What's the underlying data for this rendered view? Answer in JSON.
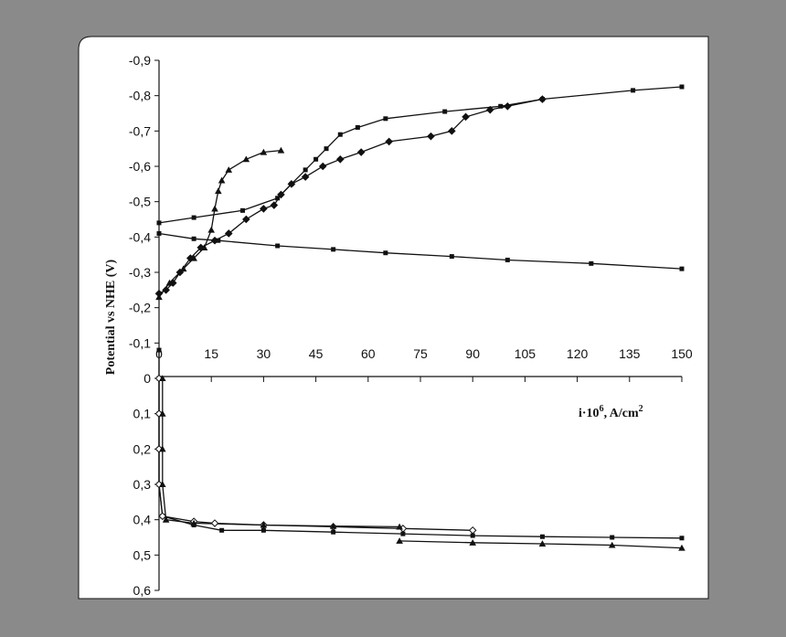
{
  "chart_data": {
    "type": "scatter",
    "title": "",
    "xlabel": "i·10",
    "xlabel_sup": "6",
    "xlabel_unit": ", A/cm",
    "xlabel_unit_sup": "2",
    "ylabel": "Potential vs NHE (V)",
    "xlim": [
      0,
      150
    ],
    "ylim": [
      -0.9,
      0.6
    ],
    "y_direction": "negative values at top",
    "x_ticks": [
      0,
      15,
      30,
      45,
      60,
      75,
      90,
      105,
      120,
      135,
      150
    ],
    "x_tick_labels": [
      "0",
      "15",
      "30",
      "45",
      "60",
      "75",
      "90",
      "105",
      "120",
      "135",
      "150"
    ],
    "y_ticks": [
      -0.9,
      -0.8,
      -0.7,
      -0.6,
      -0.5,
      -0.4,
      -0.3,
      -0.2,
      -0.1,
      0,
      0.1,
      0.2,
      0.3,
      0.4,
      0.5,
      0.6
    ],
    "y_tick_labels": [
      "-0,9",
      "-0,8",
      "-0,7",
      "-0,6",
      "-0,5",
      "-0,4",
      "-0,3",
      "-0,2",
      "-0,1",
      "0",
      "0,1",
      "0,2",
      "0,3",
      "0,4",
      "0,5",
      "0,6"
    ],
    "grid": false,
    "legend": "none",
    "colors": {
      "background": "#8a8a8a",
      "plot_area": "#ffffff",
      "ink": "#111111"
    },
    "series": [
      {
        "marker": "square",
        "points": [
          [
            0,
            -0.44
          ],
          [
            10,
            -0.455
          ],
          [
            24,
            -0.475
          ],
          [
            34,
            -0.51
          ],
          [
            38,
            -0.55
          ],
          [
            42,
            -0.59
          ],
          [
            45,
            -0.62
          ],
          [
            48,
            -0.65
          ],
          [
            52,
            -0.69
          ],
          [
            57,
            -0.71
          ],
          [
            65,
            -0.735
          ],
          [
            82,
            -0.755
          ],
          [
            98,
            -0.77
          ],
          [
            110,
            -0.79
          ],
          [
            136,
            -0.815
          ],
          [
            150,
            -0.825
          ]
        ]
      },
      {
        "marker": "square",
        "points": [
          [
            0,
            -0.41
          ],
          [
            10,
            -0.395
          ],
          [
            17,
            -0.39
          ],
          [
            34,
            -0.375
          ],
          [
            50,
            -0.365
          ],
          [
            65,
            -0.355
          ],
          [
            84,
            -0.345
          ],
          [
            100,
            -0.335
          ],
          [
            124,
            -0.325
          ],
          [
            150,
            -0.31
          ]
        ]
      },
      {
        "marker": "diamond",
        "points": [
          [
            0,
            -0.24
          ],
          [
            2,
            -0.25
          ],
          [
            4,
            -0.27
          ],
          [
            6,
            -0.3
          ],
          [
            9,
            -0.34
          ],
          [
            12,
            -0.37
          ],
          [
            16,
            -0.39
          ],
          [
            20,
            -0.41
          ],
          [
            25,
            -0.45
          ],
          [
            30,
            -0.48
          ],
          [
            33,
            -0.49
          ],
          [
            35,
            -0.52
          ],
          [
            38,
            -0.55
          ],
          [
            42,
            -0.57
          ],
          [
            47,
            -0.6
          ],
          [
            52,
            -0.62
          ],
          [
            58,
            -0.64
          ],
          [
            66,
            -0.67
          ],
          [
            78,
            -0.685
          ],
          [
            84,
            -0.7
          ],
          [
            88,
            -0.74
          ],
          [
            95,
            -0.76
          ],
          [
            100,
            -0.77
          ],
          [
            110,
            -0.79
          ]
        ]
      },
      {
        "marker": "triangle",
        "points": [
          [
            0,
            -0.23
          ],
          [
            3,
            -0.27
          ],
          [
            7,
            -0.31
          ],
          [
            10,
            -0.34
          ],
          [
            13,
            -0.37
          ],
          [
            15,
            -0.42
          ],
          [
            16,
            -0.48
          ],
          [
            17,
            -0.53
          ],
          [
            18,
            -0.56
          ],
          [
            20,
            -0.59
          ],
          [
            25,
            -0.62
          ],
          [
            30,
            -0.64
          ],
          [
            35,
            -0.645
          ]
        ]
      },
      {
        "marker": "square",
        "points": [
          [
            0,
            -0.08
          ],
          [
            0,
            0
          ],
          [
            0,
            0.1
          ],
          [
            0,
            0.2
          ],
          [
            0,
            0.3
          ],
          [
            1,
            0.39
          ],
          [
            10,
            0.415
          ],
          [
            18,
            0.43
          ],
          [
            30,
            0.43
          ],
          [
            50,
            0.435
          ],
          [
            70,
            0.44
          ],
          [
            90,
            0.445
          ],
          [
            110,
            0.448
          ],
          [
            130,
            0.45
          ],
          [
            150,
            0.452
          ]
        ]
      },
      {
        "marker": "diamond-open",
        "points": [
          [
            0,
            0
          ],
          [
            0,
            0.1
          ],
          [
            0,
            0.2
          ],
          [
            0,
            0.3
          ],
          [
            1,
            0.39
          ],
          [
            10,
            0.405
          ],
          [
            16,
            0.41
          ],
          [
            30,
            0.415
          ],
          [
            50,
            0.42
          ],
          [
            70,
            0.425
          ],
          [
            90,
            0.43
          ]
        ]
      },
      {
        "marker": "triangle",
        "points": [
          [
            1,
            0
          ],
          [
            1,
            0.1
          ],
          [
            1,
            0.2
          ],
          [
            1,
            0.3
          ],
          [
            2,
            0.4
          ],
          [
            10,
            0.41
          ],
          [
            30,
            0.415
          ],
          [
            50,
            0.418
          ],
          [
            69,
            0.42
          ]
        ]
      },
      {
        "marker": "triangle",
        "points": [
          [
            69,
            0.46
          ],
          [
            90,
            0.465
          ],
          [
            110,
            0.468
          ],
          [
            130,
            0.472
          ],
          [
            150,
            0.48
          ]
        ]
      }
    ]
  }
}
